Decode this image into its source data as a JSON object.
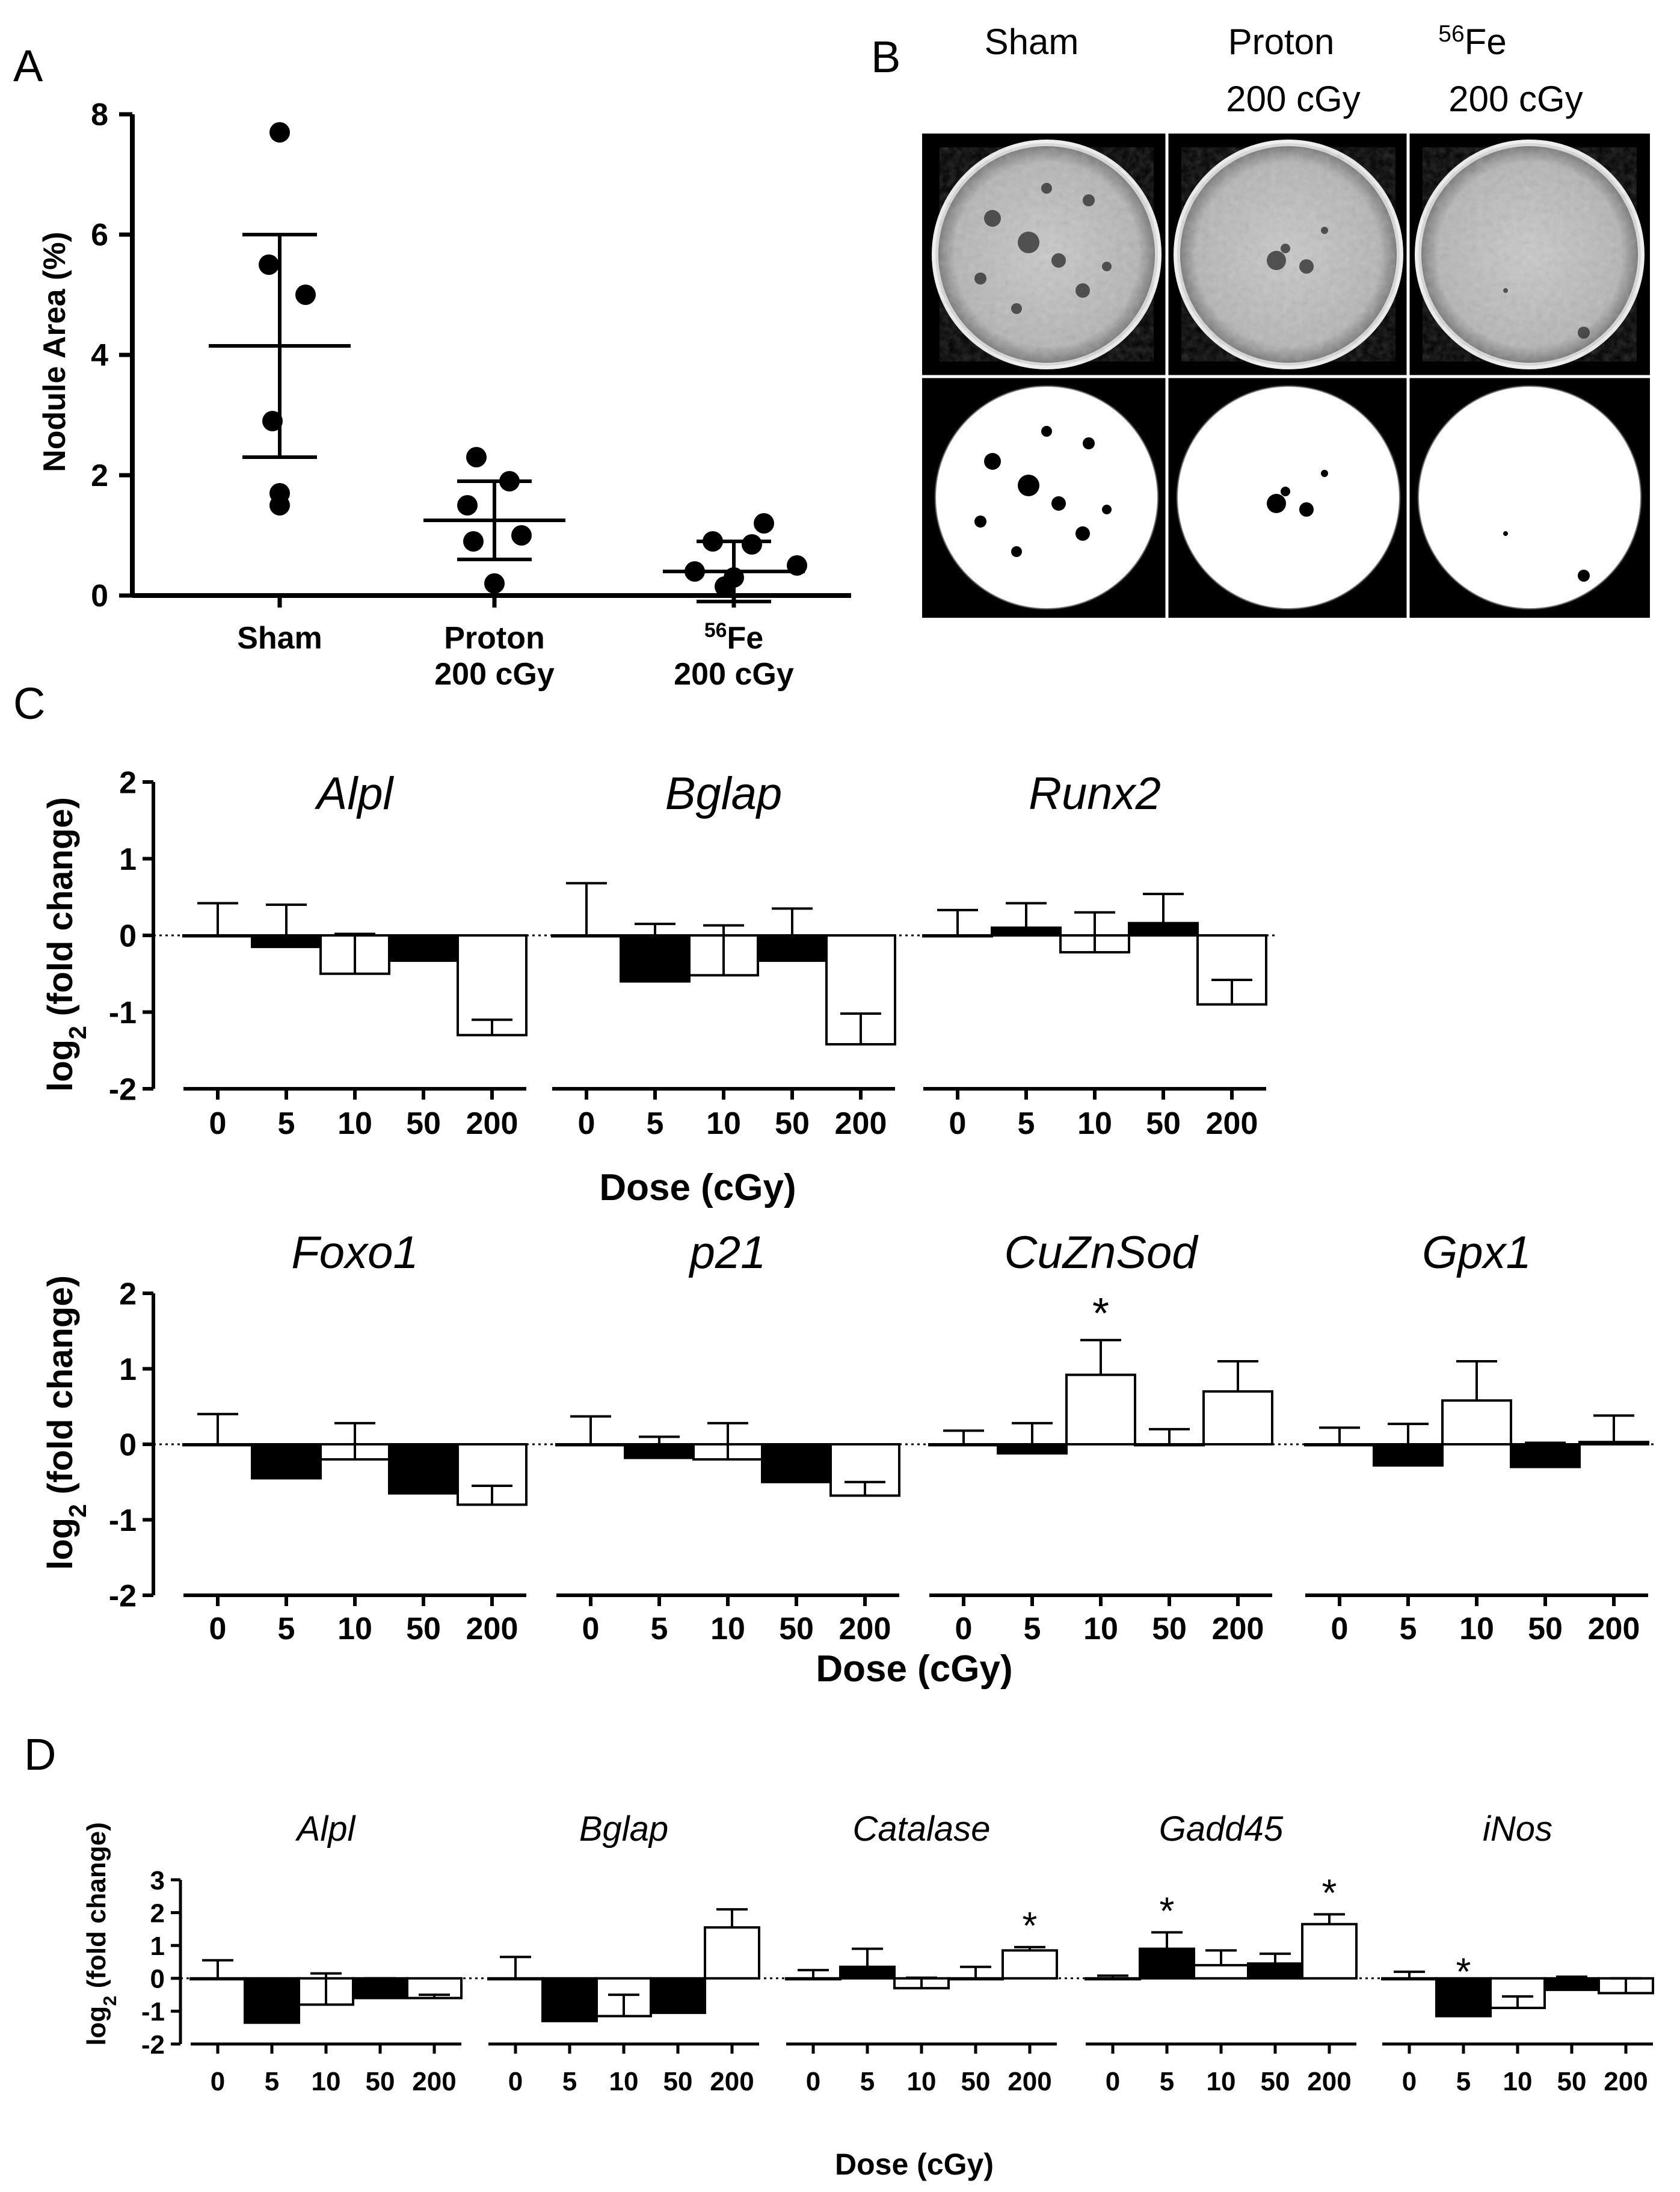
{
  "panel_letters": {
    "a": "A",
    "b": "B",
    "c": "C",
    "d": "D"
  },
  "chart_data": [
    {
      "panel": "A",
      "type": "scatter",
      "ylabel": "Nodule Area (%)",
      "ylim": [
        0,
        8
      ],
      "yticks": [
        "0",
        "2",
        "4",
        "6",
        "8"
      ],
      "categories": [
        [
          "Sham"
        ],
        [
          "Proton",
          "200 cGy"
        ],
        [
          "56Fe",
          "200 cGy"
        ]
      ],
      "points": [
        [
          7.7,
          5.5,
          5.0,
          2.9,
          1.7,
          1.5
        ],
        [
          2.3,
          1.9,
          1.5,
          1.0,
          0.9,
          0.2
        ],
        [
          1.2,
          0.9,
          0.85,
          0.5,
          0.4,
          0.3,
          0.15
        ]
      ],
      "means": [
        4.15,
        1.25,
        0.4
      ],
      "sd": [
        1.85,
        0.65,
        0.5
      ]
    },
    {
      "panel": "B",
      "type": "image-grid",
      "column_labels": [
        {
          "main": "Sham",
          "sup": "",
          "line2": ""
        },
        {
          "main": "Proton",
          "sup": "",
          "line2": "200 cGy"
        },
        {
          "main": "Fe",
          "sup": "56",
          "line2": "200 cGy"
        }
      ]
    },
    {
      "panel": "C-top",
      "type": "bar",
      "ylabel": "log2 (fold change)",
      "xlabel": "Dose (cGy)",
      "ylim": [
        -2,
        2
      ],
      "yticks": [
        "-2",
        "-1",
        "0",
        "1",
        "2"
      ],
      "categories": [
        "0",
        "5",
        "10",
        "50",
        "200"
      ],
      "bar_fill_pattern": [
        "white",
        "black",
        "white",
        "black",
        "white"
      ],
      "groups": [
        {
          "name": "Alpl",
          "values": [
            0.0,
            -0.15,
            -0.5,
            -0.33,
            -1.3
          ],
          "errors": [
            0.42,
            0.55,
            0.52,
            0.27,
            0.2
          ],
          "marks": []
        },
        {
          "name": "Bglap",
          "values": [
            0.0,
            -0.6,
            -0.52,
            -0.33,
            -1.42
          ],
          "errors": [
            0.68,
            0.75,
            0.65,
            0.68,
            0.4
          ],
          "marks": []
        },
        {
          "name": "Runx2",
          "values": [
            0.0,
            0.1,
            -0.22,
            0.16,
            -0.9
          ],
          "errors": [
            0.33,
            0.32,
            0.52,
            0.38,
            0.32
          ],
          "marks": []
        }
      ]
    },
    {
      "panel": "C-bottom",
      "type": "bar",
      "ylabel": "log2 (fold change)",
      "xlabel": "Dose (cGy)",
      "ylim": [
        -2,
        2
      ],
      "yticks": [
        "-2",
        "-1",
        "0",
        "1",
        "2"
      ],
      "categories": [
        "0",
        "5",
        "10",
        "50",
        "200"
      ],
      "bar_fill_pattern": [
        "white",
        "black",
        "white",
        "black",
        "white"
      ],
      "groups": [
        {
          "name": "Foxo1",
          "values": [
            0.0,
            -0.45,
            -0.2,
            -0.65,
            -0.8
          ],
          "errors": [
            0.4,
            0.23,
            0.48,
            0.48,
            0.25
          ],
          "marks": []
        },
        {
          "name": "p21",
          "values": [
            0.0,
            -0.18,
            -0.2,
            -0.5,
            -0.68
          ],
          "errors": [
            0.37,
            0.28,
            0.48,
            0.2,
            0.18
          ],
          "marks": []
        },
        {
          "name": "CuZnSod",
          "values": [
            0.0,
            -0.12,
            0.92,
            0.0,
            0.7
          ],
          "errors": [
            0.18,
            0.4,
            0.46,
            0.2,
            0.4
          ],
          "marks": [
            "",
            "",
            "*",
            "",
            ""
          ]
        },
        {
          "name": "Gpx1",
          "values": [
            0.0,
            -0.28,
            0.58,
            -0.3,
            0.03
          ],
          "errors": [
            0.22,
            0.55,
            0.52,
            0.32,
            0.35
          ],
          "marks": []
        }
      ]
    },
    {
      "panel": "D",
      "type": "bar",
      "ylabel": "log2 (fold change)",
      "xlabel": "Dose (cGy)",
      "ylim": [
        -2,
        3
      ],
      "yticks": [
        "-2",
        "-1",
        "0",
        "1",
        "2",
        "3"
      ],
      "categories": [
        "0",
        "5",
        "10",
        "50",
        "200"
      ],
      "bar_fill_pattern": [
        "white",
        "black",
        "white",
        "black",
        "white"
      ],
      "groups": [
        {
          "name": "Alpl",
          "values": [
            0.0,
            -1.35,
            -0.8,
            -0.6,
            -0.6
          ],
          "errors": [
            0.55,
            0.3,
            0.95,
            0.6,
            0.1
          ],
          "marks": []
        },
        {
          "name": "Bglap",
          "values": [
            0.0,
            -1.3,
            -1.15,
            -1.05,
            1.55
          ],
          "errors": [
            0.65,
            0.45,
            0.65,
            0.45,
            0.55
          ],
          "marks": []
        },
        {
          "name": "Catalase",
          "values": [
            0.0,
            0.35,
            -0.3,
            0.0,
            0.85
          ],
          "errors": [
            0.25,
            0.55,
            0.32,
            0.35,
            0.1
          ],
          "marks": [
            "",
            "",
            "",
            "",
            "*"
          ]
        },
        {
          "name": "Gadd45",
          "values": [
            0.0,
            0.9,
            0.4,
            0.45,
            1.65
          ],
          "errors": [
            0.08,
            0.5,
            0.45,
            0.3,
            0.3
          ],
          "marks": [
            "",
            "*",
            "",
            "",
            "*"
          ]
        },
        {
          "name": "iNos",
          "values": [
            0.0,
            -1.15,
            -0.9,
            -0.35,
            -0.45
          ],
          "errors": [
            0.2,
            0.7,
            0.35,
            0.4,
            0.45
          ],
          "marks": [
            "",
            "*",
            "",
            "",
            ""
          ]
        }
      ]
    }
  ]
}
